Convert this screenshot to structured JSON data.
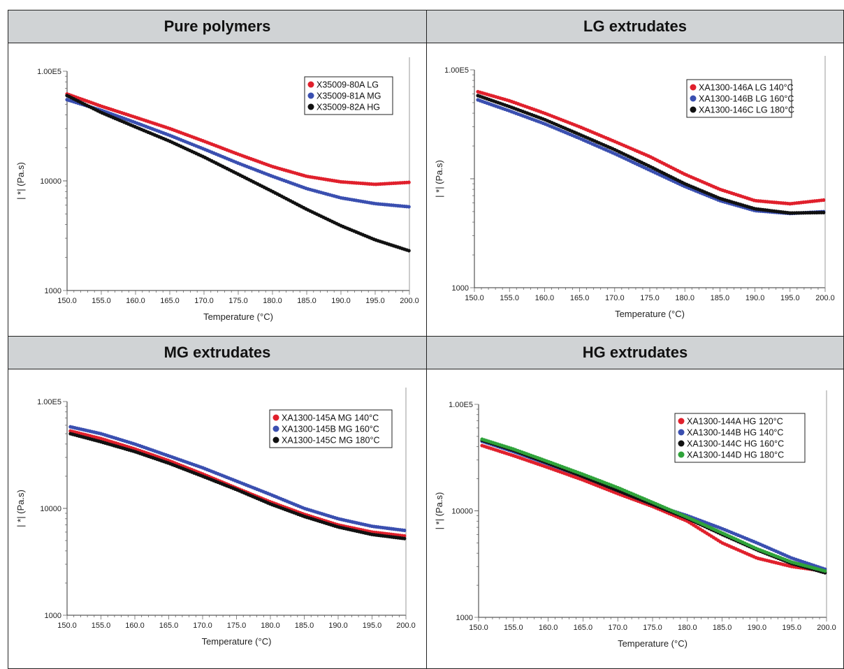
{
  "chart_data": [
    {
      "type": "scatter",
      "title": "Pure polymers",
      "xlabel": "Temperature (°C)",
      "ylabel": "| *| (Pa.s)",
      "xlim": [
        150,
        200
      ],
      "ylim": [
        1000,
        100000
      ],
      "yscale": "log",
      "xticks": [
        "150.0",
        "155.0",
        "160.0",
        "165.0",
        "170.0",
        "175.0",
        "180.0",
        "185.0",
        "190.0",
        "195.0",
        "200.0"
      ],
      "yticks": [
        "1000",
        "10000",
        "1.00E5"
      ],
      "legend_position": "top-right",
      "series": [
        {
          "name": "X35009-80A LG",
          "color": "#e0202c",
          "x": [
            150,
            155,
            160,
            165,
            170,
            175,
            180,
            185,
            190,
            195,
            200
          ],
          "y": [
            62000,
            48000,
            38000,
            30000,
            23000,
            17500,
            13500,
            11000,
            9800,
            9300,
            9700
          ]
        },
        {
          "name": "X35009-81A MG",
          "color": "#3a4fb0",
          "x": [
            150,
            155,
            160,
            165,
            170,
            175,
            180,
            185,
            190,
            195,
            200
          ],
          "y": [
            55000,
            44000,
            34000,
            26000,
            19500,
            14500,
            11000,
            8500,
            7000,
            6200,
            5800
          ]
        },
        {
          "name": "X35009-82A HG",
          "color": "#111111",
          "x": [
            150,
            155,
            160,
            165,
            170,
            175,
            180,
            185,
            190,
            195,
            200
          ],
          "y": [
            60000,
            42000,
            31000,
            23000,
            16500,
            11500,
            8000,
            5500,
            3900,
            2900,
            2300
          ]
        }
      ]
    },
    {
      "type": "scatter",
      "title": "LG extrudates",
      "xlabel": "Temperature (°C)",
      "ylabel": "| *| (Pa.s)",
      "xlim": [
        150,
        200
      ],
      "ylim": [
        1000,
        100000
      ],
      "yscale": "log",
      "xticks": [
        "150.0",
        "155.0",
        "160.0",
        "165.0",
        "170.0",
        "175.0",
        "180.0",
        "185.0",
        "190.0",
        "195.0",
        "200.0"
      ],
      "yticks": [
        "1000",
        "1.00E5"
      ],
      "legend_position": "top-right",
      "series": [
        {
          "name": "XA1300-146A LG 140°C",
          "color": "#e0202c",
          "x": [
            150.5,
            155,
            160,
            165,
            170,
            175,
            180,
            185,
            190,
            195,
            200
          ],
          "y": [
            63000,
            52000,
            40000,
            30000,
            22000,
            16000,
            11000,
            8000,
            6300,
            5900,
            6400
          ]
        },
        {
          "name": "XA1300-146B LG 160°C",
          "color": "#3a4fb0",
          "x": [
            150.5,
            155,
            160,
            165,
            170,
            175,
            180,
            185,
            190,
            195,
            200
          ],
          "y": [
            53000,
            42000,
            32000,
            23500,
            17000,
            12000,
            8500,
            6300,
            5100,
            4800,
            5000
          ]
        },
        {
          "name": "XA1300-146C LG 180°C",
          "color": "#111111",
          "x": [
            150.5,
            155,
            160,
            165,
            170,
            175,
            180,
            185,
            190,
            195,
            200
          ],
          "y": [
            58000,
            46000,
            35000,
            25500,
            18500,
            13000,
            9000,
            6600,
            5300,
            4850,
            4900
          ]
        }
      ]
    },
    {
      "type": "scatter",
      "title": "MG extrudates",
      "xlabel": "Temperature (°C)",
      "ylabel": "| *| (Pa.s)",
      "xlim": [
        150,
        200
      ],
      "ylim": [
        1000,
        100000
      ],
      "yscale": "log",
      "xticks": [
        "150.0",
        "155.0",
        "160.0",
        "165.0",
        "170.0",
        "175.0",
        "180.0",
        "185.0",
        "190.0",
        "195.0",
        "200.0"
      ],
      "yticks": [
        "1000",
        "10000",
        "1.00E5"
      ],
      "legend_position": "top-right",
      "series": [
        {
          "name": "XA1300-145A MG 140°C",
          "color": "#e0202c",
          "x": [
            150.5,
            155,
            160,
            165,
            170,
            175,
            180,
            185,
            190,
            195,
            200
          ],
          "y": [
            53000,
            45000,
            36000,
            28000,
            21000,
            15500,
            11500,
            8800,
            7000,
            6000,
            5500
          ]
        },
        {
          "name": "XA1300-145B MG 160°C",
          "color": "#3a4fb0",
          "x": [
            150.5,
            155,
            160,
            165,
            170,
            175,
            180,
            185,
            190,
            195,
            200
          ],
          "y": [
            58000,
            50000,
            40000,
            31000,
            24000,
            18000,
            13500,
            10000,
            8000,
            6800,
            6200
          ]
        },
        {
          "name": "XA1300-145C MG 180°C",
          "color": "#111111",
          "x": [
            150.5,
            155,
            160,
            165,
            170,
            175,
            180,
            185,
            190,
            195,
            200
          ],
          "y": [
            50000,
            42000,
            34000,
            26500,
            20000,
            15000,
            11000,
            8400,
            6700,
            5700,
            5200
          ]
        }
      ]
    },
    {
      "type": "scatter",
      "title": "HG extrudates",
      "xlabel": "Temperature (°C)",
      "ylabel": "| *| (Pa.s)",
      "xlim": [
        150,
        200
      ],
      "ylim": [
        1000,
        100000
      ],
      "yscale": "log",
      "xticks": [
        "150.0",
        "155.0",
        "160.0",
        "165.0",
        "170.0",
        "175.0",
        "180.0",
        "185.0",
        "190.0",
        "195.0",
        "200.0"
      ],
      "yticks": [
        "1000",
        "10000",
        "1.00E5"
      ],
      "legend_position": "top-right",
      "series": [
        {
          "name": "XA1300-144A HG 120°C",
          "color": "#e0202c",
          "x": [
            150.5,
            155,
            160,
            165,
            170,
            175,
            180,
            185,
            190,
            195,
            200
          ],
          "y": [
            41000,
            33000,
            25500,
            19500,
            14500,
            11000,
            8000,
            5000,
            3600,
            3000,
            2700
          ]
        },
        {
          "name": "XA1300-144B HG 140°C",
          "color": "#3a4fb0",
          "x": [
            150.5,
            155,
            160,
            165,
            170,
            175,
            180,
            185,
            190,
            195,
            200
          ],
          "y": [
            45000,
            36000,
            27500,
            21000,
            15500,
            11500,
            9000,
            6800,
            5000,
            3600,
            2800
          ]
        },
        {
          "name": "XA1300-144C HG 160°C",
          "color": "#111111",
          "x": [
            150.5,
            155,
            160,
            165,
            170,
            175,
            180,
            185,
            190,
            195,
            200
          ],
          "y": [
            46000,
            37000,
            28000,
            21000,
            15500,
            11500,
            8500,
            6000,
            4300,
            3200,
            2600
          ]
        },
        {
          "name": "XA1300-144D HG 180°C",
          "color": "#2fa33a",
          "x": [
            150.5,
            155,
            160,
            165,
            170,
            175,
            180,
            185,
            190,
            195,
            200
          ],
          "y": [
            47000,
            38000,
            29000,
            22000,
            16500,
            12000,
            8700,
            6200,
            4400,
            3300,
            2700
          ]
        }
      ]
    }
  ]
}
